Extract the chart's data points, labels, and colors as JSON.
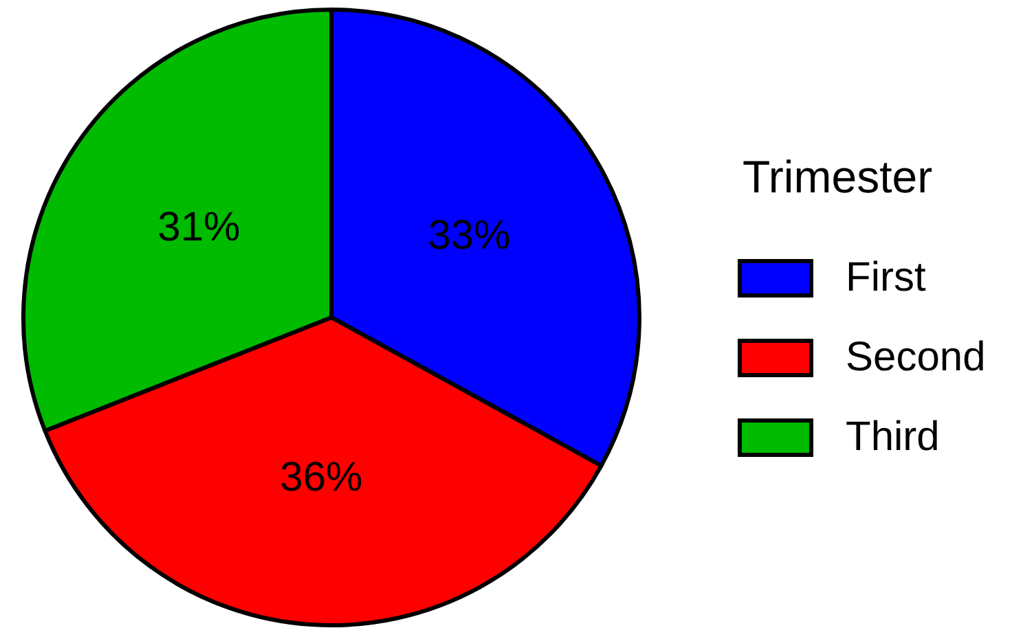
{
  "chart_data": {
    "type": "pie",
    "legend_title": "Trimester",
    "categories": [
      "First",
      "Second",
      "Third"
    ],
    "values": [
      33,
      36,
      31
    ],
    "colors": [
      "#0000ff",
      "#ff0000",
      "#00bb00"
    ],
    "value_labels": [
      "33%",
      "36%",
      "31%"
    ],
    "legend": "right"
  }
}
